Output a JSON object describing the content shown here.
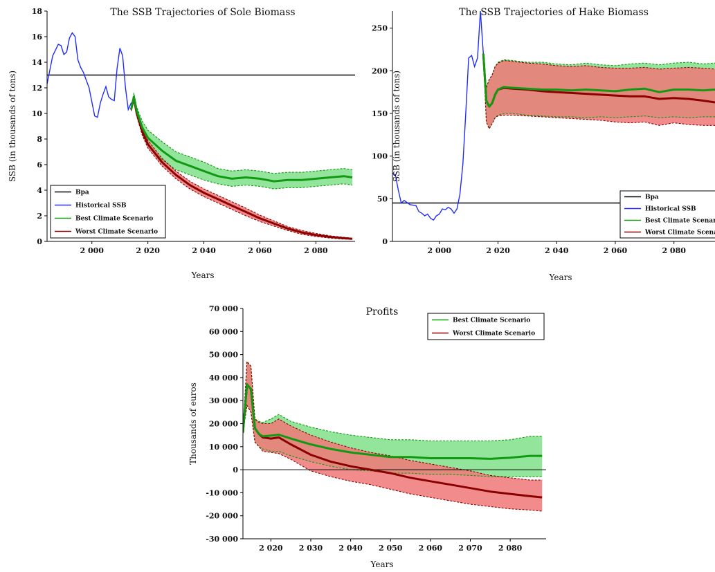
{
  "colors": {
    "bpa": "#000000",
    "historical": "#1f2bff",
    "best_line": "#119911",
    "best_band": "#7fe08a",
    "worst_line": "#8b0000",
    "worst_band": "#f07878"
  },
  "chart_data": [
    {
      "id": "sole",
      "type": "line",
      "title": "The SSB Trajectories of Sole Biomass",
      "xlabel": "Years",
      "ylabel": "SSB (in thousands of tons)",
      "xlim": [
        1984,
        2094
      ],
      "ylim": [
        0,
        18
      ],
      "xticks": [
        2000,
        2020,
        2040,
        2060,
        2080
      ],
      "xtick_labels": [
        "2 000",
        "2 020",
        "2 040",
        "2 060",
        "2 080"
      ],
      "yticks": [
        0,
        2,
        4,
        6,
        8,
        10,
        12,
        14,
        16,
        18
      ],
      "ytick_labels": [
        "0",
        "2",
        "4",
        "6",
        "8",
        "10",
        "12",
        "14",
        "16",
        "18"
      ],
      "legend_position": "bottom-left",
      "legend": [
        "Bpa",
        "Historical SSB",
        "Best Climate Scenario",
        "Worst Climate Scenario"
      ],
      "series": [
        {
          "name": "Bpa",
          "kind": "hline",
          "y": 13
        },
        {
          "name": "Historical SSB",
          "kind": "line",
          "x": [
            1984,
            1986,
            1988,
            1989,
            1990,
            1991,
            1992,
            1993,
            1994,
            1995,
            1996,
            1997,
            1998,
            1999,
            2000,
            2001,
            2002,
            2003,
            2004,
            2005,
            2006,
            2007,
            2008,
            2009,
            2010,
            2011,
            2012,
            2013,
            2014,
            2015
          ],
          "y": [
            12.3,
            14.5,
            15.4,
            15.3,
            14.6,
            14.8,
            15.9,
            16.3,
            16.0,
            14.2,
            13.6,
            13.2,
            12.6,
            12.0,
            10.9,
            9.8,
            9.7,
            10.8,
            11.5,
            12.1,
            11.3,
            11.1,
            11.0,
            13.5,
            15.1,
            14.5,
            12.0,
            10.3,
            10.8,
            11.0
          ]
        },
        {
          "name": "Best Climate Scenario",
          "kind": "band",
          "x": [
            2014,
            2015,
            2016,
            2018,
            2020,
            2025,
            2030,
            2035,
            2040,
            2045,
            2050,
            2055,
            2060,
            2065,
            2070,
            2075,
            2080,
            2085,
            2090,
            2093
          ],
          "y": [
            10.3,
            11.3,
            10.2,
            8.9,
            8.1,
            7.1,
            6.3,
            5.9,
            5.5,
            5.1,
            4.9,
            5.0,
            4.9,
            4.7,
            4.8,
            4.8,
            4.9,
            5.0,
            5.1,
            5.0
          ],
          "lower": [
            10.2,
            11.0,
            9.9,
            8.4,
            7.5,
            6.4,
            5.6,
            5.2,
            4.8,
            4.5,
            4.3,
            4.4,
            4.3,
            4.1,
            4.2,
            4.2,
            4.3,
            4.4,
            4.5,
            4.4
          ],
          "upper": [
            10.4,
            11.6,
            10.5,
            9.4,
            8.7,
            7.8,
            7.0,
            6.6,
            6.2,
            5.7,
            5.5,
            5.6,
            5.5,
            5.3,
            5.4,
            5.4,
            5.5,
            5.6,
            5.7,
            5.6
          ]
        },
        {
          "name": "Worst Climate Scenario",
          "kind": "band",
          "x": [
            2014,
            2015,
            2016,
            2018,
            2020,
            2025,
            2030,
            2035,
            2040,
            2045,
            2050,
            2055,
            2060,
            2065,
            2070,
            2075,
            2080,
            2085,
            2090,
            2093
          ],
          "y": [
            10.3,
            11.2,
            10.0,
            8.6,
            7.6,
            6.2,
            5.2,
            4.4,
            3.8,
            3.3,
            2.8,
            2.3,
            1.8,
            1.4,
            1.0,
            0.7,
            0.5,
            0.35,
            0.25,
            0.2
          ],
          "lower": [
            10.2,
            11.0,
            9.8,
            8.3,
            7.3,
            5.9,
            4.9,
            4.1,
            3.5,
            3.0,
            2.5,
            2.0,
            1.55,
            1.2,
            0.85,
            0.55,
            0.38,
            0.26,
            0.18,
            0.15
          ],
          "upper": [
            10.4,
            11.4,
            10.2,
            8.9,
            7.9,
            6.5,
            5.5,
            4.7,
            4.1,
            3.6,
            3.1,
            2.6,
            2.05,
            1.6,
            1.15,
            0.85,
            0.62,
            0.44,
            0.32,
            0.25
          ]
        }
      ]
    },
    {
      "id": "hake",
      "type": "line",
      "title": "The SSB Trajectories of Hake Biomass",
      "xlabel": "Years",
      "ylabel": "SSB (in thousands of tons)",
      "xlim": [
        1984,
        2094
      ],
      "ylim": [
        0,
        270
      ],
      "xticks": [
        2000,
        2020,
        2040,
        2060,
        2080
      ],
      "xtick_labels": [
        "2 000",
        "2 020",
        "2 040",
        "2 060",
        "2 080"
      ],
      "yticks": [
        0,
        50,
        100,
        150,
        200,
        250
      ],
      "ytick_labels": [
        "0",
        "50",
        "100",
        "150",
        "200",
        "250"
      ],
      "legend_position": "bottom-right",
      "legend": [
        "Bpa",
        "Historical SSB",
        "Best Climate Scenario",
        "Worst Climate Scenario"
      ],
      "series": [
        {
          "name": "Bpa",
          "kind": "hline",
          "y": 45
        },
        {
          "name": "Historical SSB",
          "kind": "line",
          "x": [
            1984,
            1985,
            1986,
            1987,
            1988,
            1990,
            1992,
            1993,
            1994,
            1995,
            1996,
            1997,
            1998,
            1999,
            2000,
            2001,
            2002,
            2003,
            2004,
            2005,
            2006,
            2007,
            2008,
            2009,
            2010,
            2011,
            2012,
            2013,
            2014,
            2015,
            2016
          ],
          "y": [
            80,
            78,
            60,
            45,
            48,
            43,
            42,
            35,
            33,
            30,
            32,
            27,
            25,
            30,
            32,
            38,
            37,
            40,
            38,
            33,
            38,
            55,
            90,
            150,
            215,
            218,
            205,
            215,
            270,
            220,
            165
          ]
        },
        {
          "name": "Best Climate Scenario",
          "kind": "band",
          "x": [
            2015,
            2016,
            2017,
            2018,
            2019,
            2020,
            2022,
            2025,
            2030,
            2035,
            2040,
            2045,
            2050,
            2055,
            2060,
            2065,
            2070,
            2075,
            2080,
            2085,
            2090,
            2094
          ],
          "y": [
            220,
            165,
            158,
            162,
            172,
            178,
            181,
            180,
            179,
            178,
            178,
            177,
            178,
            177,
            176,
            178,
            179,
            175,
            178,
            178,
            177,
            178
          ],
          "lower": [
            220,
            140,
            132,
            138,
            145,
            148,
            150,
            150,
            148,
            147,
            146,
            146,
            145,
            146,
            145,
            146,
            147,
            145,
            146,
            145,
            146,
            146
          ],
          "upper": [
            220,
            180,
            190,
            195,
            205,
            210,
            213,
            212,
            210,
            210,
            208,
            207,
            209,
            207,
            206,
            208,
            209,
            207,
            209,
            210,
            208,
            209
          ]
        },
        {
          "name": "Worst Climate Scenario",
          "kind": "band",
          "x": [
            2015,
            2016,
            2017,
            2018,
            2019,
            2020,
            2022,
            2025,
            2030,
            2035,
            2040,
            2045,
            2050,
            2055,
            2060,
            2065,
            2070,
            2075,
            2080,
            2085,
            2090,
            2094
          ],
          "y": [
            220,
            165,
            158,
            162,
            172,
            178,
            180,
            179,
            178,
            176,
            175,
            174,
            173,
            172,
            171,
            170,
            170,
            167,
            168,
            167,
            165,
            163
          ],
          "lower": [
            220,
            140,
            132,
            138,
            145,
            147,
            148,
            148,
            147,
            146,
            145,
            144,
            143,
            142,
            140,
            139,
            140,
            136,
            139,
            137,
            136,
            136
          ],
          "upper": [
            220,
            180,
            190,
            195,
            205,
            209,
            212,
            211,
            209,
            208,
            206,
            205,
            206,
            204,
            203,
            203,
            204,
            202,
            203,
            204,
            203,
            202
          ]
        }
      ]
    },
    {
      "id": "profits",
      "type": "line",
      "title": "Profits",
      "xlabel": "Years",
      "ylabel": "Thousands of euros",
      "xlim": [
        2013,
        2089
      ],
      "ylim": [
        -30000,
        70000
      ],
      "xticks": [
        2020,
        2030,
        2040,
        2050,
        2060,
        2070,
        2080
      ],
      "xtick_labels": [
        "2 020",
        "2 030",
        "2 040",
        "2 050",
        "2 060",
        "2 070",
        "2 080"
      ],
      "yticks": [
        -30000,
        -20000,
        -10000,
        0,
        10000,
        20000,
        30000,
        40000,
        50000,
        60000,
        70000
      ],
      "ytick_labels": [
        "-30 000",
        "-20 000",
        "-10 000",
        "0",
        "10 000",
        "20 000",
        "30 000",
        "40 000",
        "50 000",
        "60 000",
        "70 000"
      ],
      "legend_position": "top-right",
      "legend": [
        "Best Climate Scenario",
        "Worst Climate Scenario"
      ],
      "series": [
        {
          "name": "zero line",
          "kind": "hline",
          "y": 0
        },
        {
          "name": "Best Climate Scenario",
          "kind": "band",
          "x": [
            2013,
            2014,
            2015,
            2016,
            2017,
            2018,
            2020,
            2022,
            2025,
            2030,
            2035,
            2040,
            2045,
            2050,
            2055,
            2060,
            2065,
            2070,
            2075,
            2080,
            2085,
            2088
          ],
          "y": [
            16000,
            37000,
            35000,
            18000,
            15500,
            14500,
            14800,
            15200,
            13500,
            11000,
            9000,
            7500,
            6500,
            5500,
            5500,
            5000,
            5000,
            5000,
            4700,
            5200,
            6000,
            6000
          ],
          "lower": [
            16000,
            28000,
            25000,
            12000,
            10000,
            9000,
            8000,
            8000,
            6000,
            3500,
            1500,
            0,
            -500,
            -1500,
            -1500,
            -2000,
            -2000,
            -2500,
            -3000,
            -3000,
            -3000,
            -3000
          ],
          "upper": [
            16000,
            47000,
            45000,
            22000,
            21000,
            20500,
            22000,
            24000,
            21000,
            18500,
            16500,
            15000,
            14000,
            13000,
            13000,
            12500,
            12500,
            12500,
            12500,
            13000,
            14500,
            14500
          ]
        },
        {
          "name": "Worst Climate Scenario",
          "kind": "band",
          "x": [
            2013,
            2014,
            2015,
            2016,
            2017,
            2018,
            2020,
            2022,
            2025,
            2030,
            2035,
            2040,
            2045,
            2050,
            2055,
            2060,
            2065,
            2070,
            2075,
            2080,
            2085,
            2088
          ],
          "y": [
            16000,
            37000,
            35000,
            18000,
            15500,
            14000,
            13500,
            14000,
            11000,
            6500,
            3500,
            1500,
            0,
            -1500,
            -3500,
            -5000,
            -6500,
            -8000,
            -9500,
            -10500,
            -11500,
            -12000
          ],
          "lower": [
            16000,
            28000,
            25000,
            12000,
            10000,
            8000,
            7500,
            7000,
            4500,
            -500,
            -3000,
            -5000,
            -6500,
            -8500,
            -10500,
            -12000,
            -13500,
            -15000,
            -16000,
            -17000,
            -17500,
            -18000
          ],
          "upper": [
            16000,
            47000,
            45000,
            22000,
            20500,
            20000,
            20000,
            22000,
            19000,
            15000,
            12000,
            9500,
            7500,
            6000,
            4000,
            2500,
            1000,
            -500,
            -2500,
            -3500,
            -4500,
            -4500
          ]
        }
      ]
    }
  ]
}
